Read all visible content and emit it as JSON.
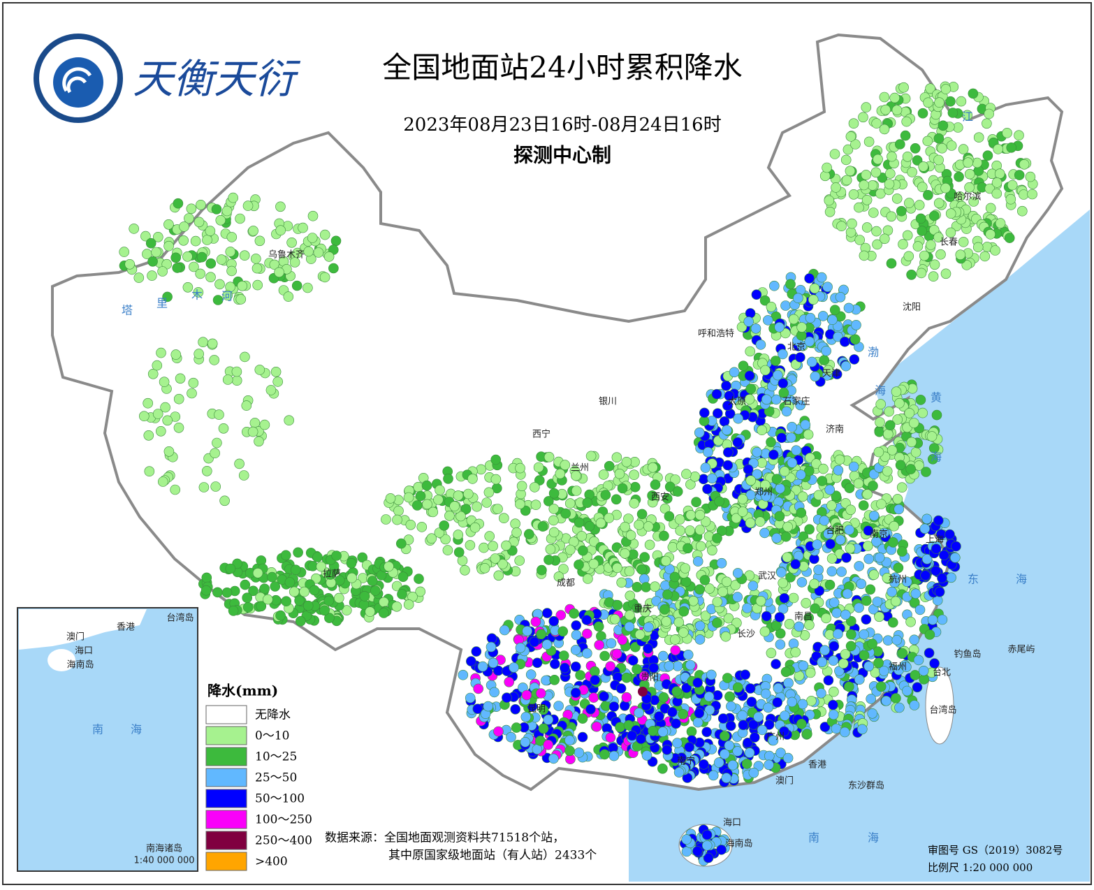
{
  "header": {
    "brand": "天衡天衍",
    "title": "全国地面站24小时累积降水",
    "date_range": "2023年08月23日16时-08月24日16时",
    "producer": "探测中心制"
  },
  "legend": {
    "title": "降水(mm)",
    "items": [
      {
        "label": "无降水",
        "color": "#ffffff"
      },
      {
        "label": "0～10",
        "color": "#a6f28f"
      },
      {
        "label": "10～25",
        "color": "#3dba3d"
      },
      {
        "label": "25～50",
        "color": "#61b8ff"
      },
      {
        "label": "50～100",
        "color": "#0000ff"
      },
      {
        "label": "100～250",
        "color": "#fa00fa"
      },
      {
        "label": "250～400",
        "color": "#800040"
      },
      {
        "label": ">400",
        "color": "#ffa500"
      }
    ]
  },
  "source": {
    "line1": "数据来源：全国地面观测资料共71518个站，",
    "line2": "其中原国家级地面站（有人站）2433个"
  },
  "footer": {
    "approval": "审图号  GS（2019）3082号",
    "scale": "比例尺  1:20 000 000"
  },
  "cities": [
    "乌鲁木齐",
    "哈尔滨",
    "长春",
    "沈阳",
    "呼和浩特",
    "北京",
    "天津",
    "银川",
    "太原",
    "石家庄",
    "西宁",
    "济南",
    "兰州",
    "西安",
    "郑州",
    "合肥",
    "南京",
    "上海",
    "拉萨",
    "成都",
    "武汉",
    "杭州",
    "重庆",
    "长沙",
    "南昌",
    "福州",
    "贵阳",
    "昆明",
    "台北",
    "台湾岛",
    "南宁",
    "广州",
    "香港",
    "澳门",
    "海口",
    "海南岛",
    "钓鱼岛",
    "赤尾屿",
    "东沙群岛"
  ],
  "seas": [
    "渤",
    "海",
    "黄",
    "海",
    "东",
    "海",
    "南",
    "海",
    "塔",
    "里",
    "木",
    "河",
    "江"
  ],
  "inset": {
    "labels": [
      "香港",
      "澳门",
      "海口",
      "海南岛",
      "台湾岛",
      "南",
      "海"
    ],
    "title": "南海诸岛",
    "scale": "1:40 000 000"
  }
}
